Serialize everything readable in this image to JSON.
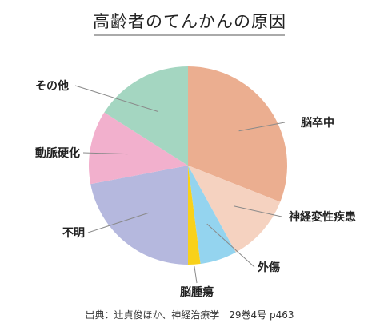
{
  "chart_data": {
    "type": "pie",
    "title": "高齢者のてんかんの原因",
    "source": "出典：辻貞俊ほか、神経治療学　29巻4号 p463",
    "slices": [
      {
        "label": "脳卒中",
        "value": 31,
        "color": "#ebae90"
      },
      {
        "label": "神経変性疾患",
        "value": 11,
        "color": "#f5d2c0"
      },
      {
        "label": "外傷",
        "value": 6,
        "color": "#94d4ef"
      },
      {
        "label": "脳腫瘍",
        "value": 2,
        "color": "#f8d11a"
      },
      {
        "label": "不明",
        "value": 22,
        "color": "#b5b8de"
      },
      {
        "label": "動脈硬化",
        "value": 12,
        "color": "#f2b0cd"
      },
      {
        "label": "その他",
        "value": 16,
        "color": "#a4d6c1"
      }
    ]
  }
}
